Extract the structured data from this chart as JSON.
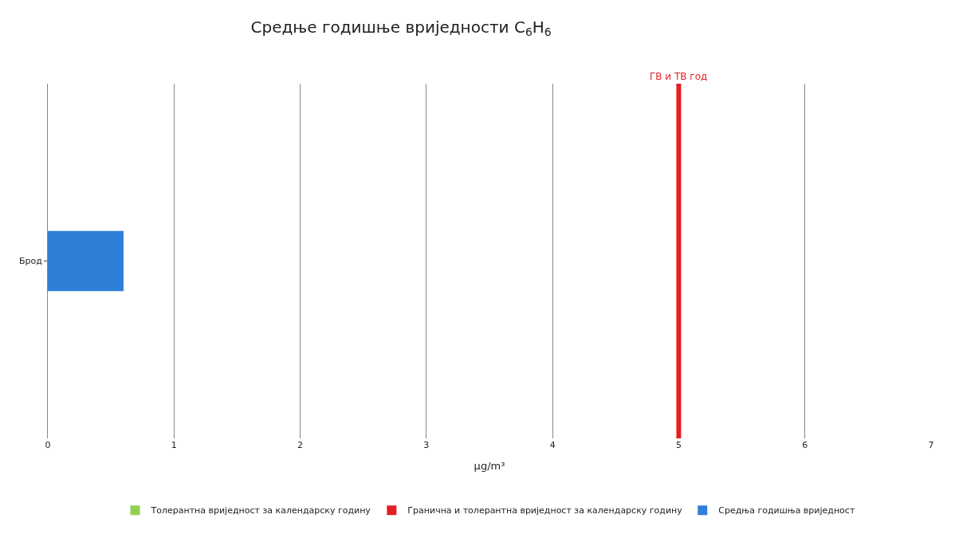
{
  "chart_data": {
    "type": "bar",
    "orientation": "horizontal",
    "title": "Средње годишње вриједности C$_{6}$H$_{6}$",
    "xlabel": "µg/m³",
    "categories": [
      "Брод"
    ],
    "series": [
      {
        "name": "Толерантна вриједност за календарску годину",
        "color": "#92d050",
        "values": [
          null
        ]
      },
      {
        "name": "Гранична и толерантна вриједност за календарску годину",
        "color": "#e31e24",
        "values": [
          null
        ]
      },
      {
        "name": "Средња годишња вриједност",
        "color": "#2f7ed8",
        "values": [
          0.6
        ]
      }
    ],
    "ref_lines": [
      {
        "axis": "x",
        "value": 5,
        "label": "ГВ и ТВ год",
        "color": "#e31e24"
      }
    ],
    "xlim": [
      0,
      7
    ],
    "xticks": [
      0,
      1,
      2,
      3,
      4,
      5,
      6,
      7
    ],
    "grid": "x",
    "legend": "bottom"
  }
}
